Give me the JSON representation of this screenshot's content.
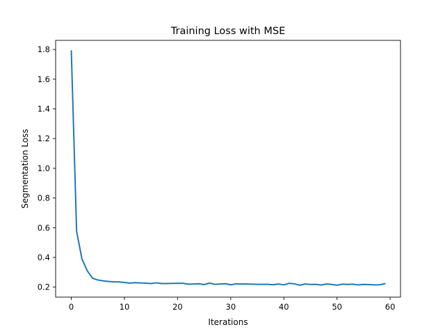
{
  "chart_data": {
    "type": "line",
    "title": "Training Loss with MSE",
    "xlabel": "Iterations",
    "ylabel": "Segmentation Loss",
    "xlim": [
      -2.95,
      61.95
    ],
    "ylim": [
      0.1327,
      1.8614
    ],
    "xticks": [
      0,
      10,
      20,
      30,
      40,
      50,
      60
    ],
    "yticks": [
      0.2,
      0.4,
      0.6,
      0.8,
      1.0,
      1.2,
      1.4,
      1.6,
      1.8
    ],
    "ytick_labels": [
      "0.2",
      "0.4",
      "0.6",
      "0.8",
      "1.0",
      "1.2",
      "1.4",
      "1.6",
      "1.8"
    ],
    "grid": false,
    "series": [
      {
        "color": "#1f77b4",
        "x": [
          0,
          1,
          2,
          3,
          4,
          5,
          6,
          7,
          8,
          9,
          10,
          11,
          12,
          13,
          14,
          15,
          16,
          17,
          18,
          19,
          20,
          21,
          22,
          23,
          24,
          25,
          26,
          27,
          28,
          29,
          30,
          31,
          32,
          33,
          34,
          35,
          36,
          37,
          38,
          39,
          40,
          41,
          42,
          43,
          44,
          45,
          46,
          47,
          48,
          49,
          50,
          51,
          52,
          53,
          54,
          55,
          56,
          57,
          58,
          59
        ],
        "values": [
          1.79,
          0.575,
          0.39,
          0.31,
          0.26,
          0.248,
          0.242,
          0.238,
          0.236,
          0.235,
          0.231,
          0.227,
          0.23,
          0.228,
          0.227,
          0.224,
          0.229,
          0.224,
          0.224,
          0.225,
          0.226,
          0.226,
          0.22,
          0.221,
          0.223,
          0.217,
          0.227,
          0.219,
          0.221,
          0.223,
          0.216,
          0.222,
          0.221,
          0.221,
          0.22,
          0.219,
          0.219,
          0.219,
          0.216,
          0.221,
          0.215,
          0.226,
          0.222,
          0.213,
          0.221,
          0.218,
          0.219,
          0.214,
          0.221,
          0.218,
          0.213,
          0.22,
          0.218,
          0.22,
          0.215,
          0.218,
          0.217,
          0.215,
          0.216,
          0.223
        ]
      }
    ]
  }
}
